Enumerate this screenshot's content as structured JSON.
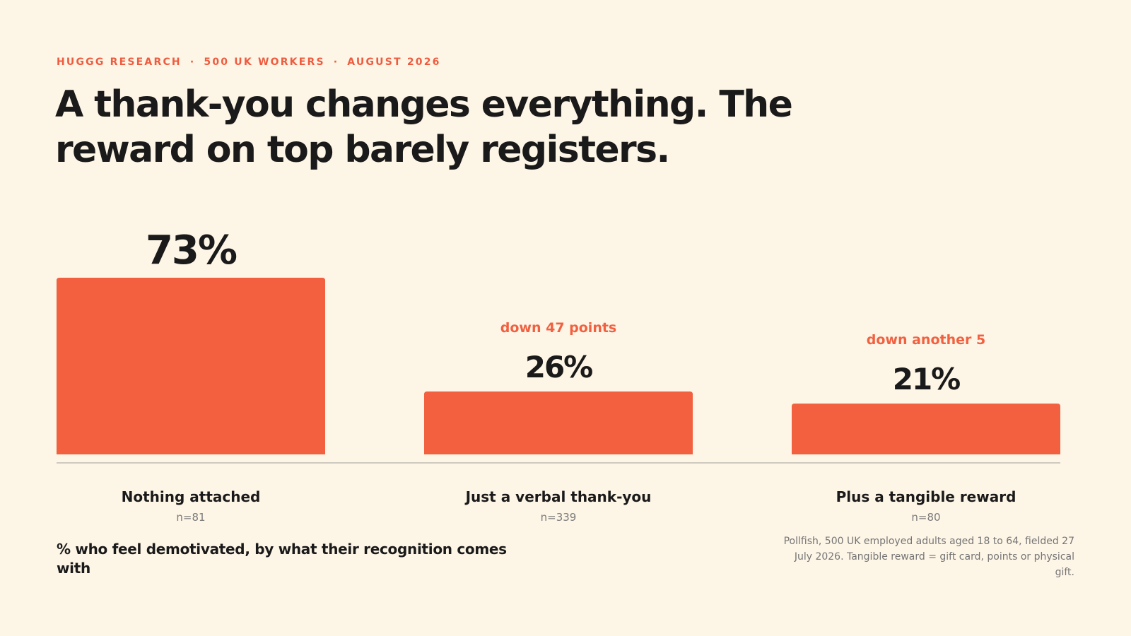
{
  "eyebrow": {
    "org": "HUGGG RESEARCH",
    "sample": "500 UK WORKERS",
    "date": "AUGUST 2026",
    "separator": "·"
  },
  "headline": "A thank-you changes everything. The reward on top barely registers.",
  "description": "% who feel demotivated, by what their recognition comes with",
  "source": "Pollfish, 500 UK employed adults aged 18 to 64, fielded 27 July 2026. Tangible reward = gift card, points or physical gift.",
  "colors": {
    "accent": "#f2603f",
    "text": "#1a1a1a",
    "muted": "#7a7a7a",
    "background": "#fdf5e6",
    "baseline": "#cfcac0"
  },
  "chart_data": {
    "type": "bar",
    "categories": [
      "Nothing attached",
      "Just a verbal thank-you",
      "Plus a tangible reward"
    ],
    "values": [
      73,
      26,
      21
    ],
    "value_labels": [
      "73%",
      "26%",
      "21%"
    ],
    "sample_sizes": [
      "n=81",
      "n=339",
      "n=80"
    ],
    "annotations": [
      "",
      "down 47 points",
      "down another 5"
    ],
    "unit": "%",
    "ylim": [
      0,
      73
    ],
    "grid": false,
    "legend": "none",
    "title": "A thank-you changes everything. The reward on top barely registers.",
    "xlabel": "",
    "ylabel": "% who feel demotivated, by what their recognition comes with"
  }
}
